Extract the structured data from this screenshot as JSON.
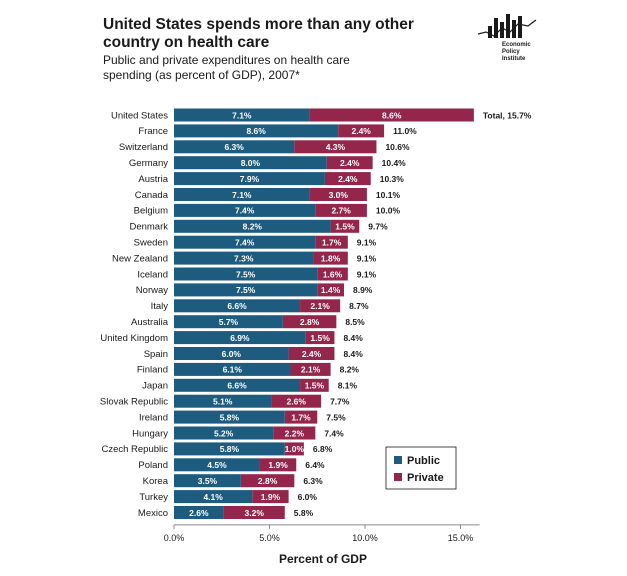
{
  "title": "United States spends more than any other country on health care",
  "subtitle": "Public and private expenditures on health care spending (as percent of GDP), 2007*",
  "logo": {
    "text": "Economic Policy Institute"
  },
  "colors": {
    "public": "#1d5b7f",
    "private": "#93264a",
    "axis": "#8a8a8a"
  },
  "chart_data": {
    "type": "bar",
    "orientation": "horizontal",
    "stacked": true,
    "categories": [
      "United States",
      "France",
      "Switzerland",
      "Germany",
      "Austria",
      "Canada",
      "Belgium",
      "Denmark",
      "Sweden",
      "New Zealand",
      "Iceland",
      "Norway",
      "Italy",
      "Australia",
      "United Kingdom",
      "Spain",
      "Finland",
      "Japan",
      "Slovak Republic",
      "Ireland",
      "Hungary",
      "Czech Republic",
      "Poland",
      "Korea",
      "Turkey",
      "Mexico"
    ],
    "series": [
      {
        "name": "Public",
        "values": [
          7.1,
          8.6,
          6.3,
          8.0,
          7.9,
          7.1,
          7.4,
          8.2,
          7.4,
          7.3,
          7.5,
          7.5,
          6.6,
          5.7,
          6.9,
          6.0,
          6.1,
          6.6,
          5.1,
          5.8,
          5.2,
          5.8,
          4.5,
          3.5,
          4.1,
          2.6
        ]
      },
      {
        "name": "Private",
        "values": [
          8.6,
          2.4,
          4.3,
          2.4,
          2.4,
          3.0,
          2.7,
          1.5,
          1.7,
          1.8,
          1.6,
          1.4,
          2.1,
          2.8,
          1.5,
          2.4,
          2.1,
          1.5,
          2.6,
          1.7,
          2.2,
          1.0,
          1.9,
          2.8,
          1.9,
          3.2
        ]
      }
    ],
    "totals": [
      "Total, 15.7%",
      "11.0%",
      "10.6%",
      "10.4%",
      "10.3%",
      "10.1%",
      "10.0%",
      "9.7%",
      "9.1%",
      "9.1%",
      "9.1%",
      "8.9%",
      "8.7%",
      "8.5%",
      "8.4%",
      "8.4%",
      "8.2%",
      "8.1%",
      "7.7%",
      "7.5%",
      "7.4%",
      "6.8%",
      "6.4%",
      "6.3%",
      "6.0%",
      "5.8%"
    ],
    "value_labels": {
      "public": [
        "7.1%",
        "8.6%",
        "6.3%",
        "8.0%",
        "7.9%",
        "7.1%",
        "7.4%",
        "8.2%",
        "7.4%",
        "7.3%",
        "7.5%",
        "7.5%",
        "6.6%",
        "5.7%",
        "6.9%",
        "6.0%",
        "6.1%",
        "6.6%",
        "5.1%",
        "5.8%",
        "5.2%",
        "5.8%",
        "4.5%",
        "3.5%",
        "4.1%",
        "2.6%"
      ],
      "private": [
        "8.6%",
        "2.4%",
        "4.3%",
        "2.4%",
        "2.4%",
        "3.0%",
        "2.7%",
        "1.5%",
        "1.7%",
        "1.8%",
        "1.6%",
        "1.4%",
        "2.1%",
        "2.8%",
        "1.5%",
        "2.4%",
        "2.1%",
        "1.5%",
        "2.6%",
        "1.7%",
        "2.2%",
        "1.0%",
        "1.9%",
        "2.8%",
        "1.9%",
        "3.2%"
      ]
    },
    "xlabel": "Percent of GDP",
    "xlim": [
      0,
      16
    ],
    "xticks": [
      0,
      5,
      10,
      15
    ],
    "xtick_labels": [
      "0.0%",
      "5.0%",
      "10.0%",
      "15.0%"
    ],
    "grid": false,
    "legend_position": "bottom-right"
  }
}
